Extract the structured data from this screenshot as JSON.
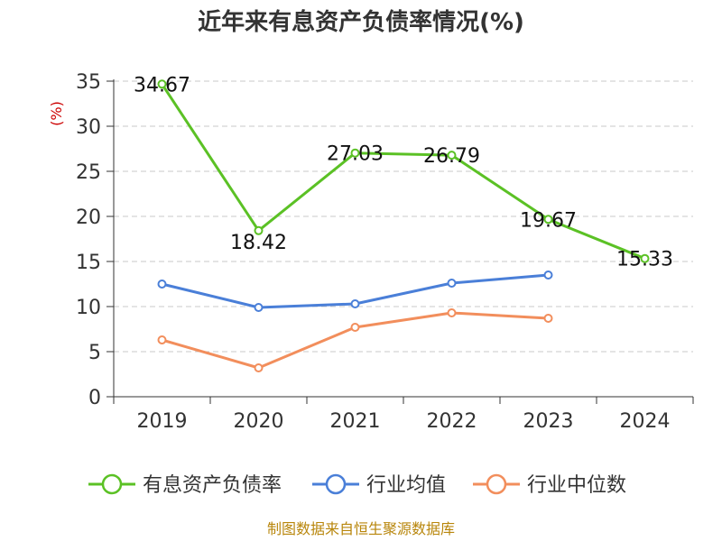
{
  "chart_data": {
    "type": "line",
    "title": "近年来有息资产负债率情况(%)",
    "ylabel": "(%)",
    "xlabel": "",
    "categories": [
      "2019",
      "2020",
      "2021",
      "2022",
      "2023",
      "2024"
    ],
    "ylim": [
      0,
      35
    ],
    "yticks": [
      0,
      5,
      10,
      15,
      20,
      25,
      30,
      35
    ],
    "grid": true,
    "legend_position": "bottom",
    "series": [
      {
        "name": "有息资产负债率",
        "color": "#5bc125",
        "values": [
          34.67,
          18.42,
          27.03,
          26.79,
          19.67,
          15.33
        ],
        "labels": [
          "34.67",
          "18.42",
          "27.03",
          "26.79",
          "19.67",
          "15.33"
        ]
      },
      {
        "name": "行业均值",
        "color": "#4a7fd8",
        "values": [
          12.5,
          9.9,
          10.3,
          12.6,
          13.5,
          null
        ]
      },
      {
        "name": "行业中位数",
        "color": "#f28e5c",
        "values": [
          6.3,
          3.2,
          7.7,
          9.3,
          8.7,
          null
        ]
      }
    ],
    "source": "制图数据来自恒生聚源数据库"
  }
}
